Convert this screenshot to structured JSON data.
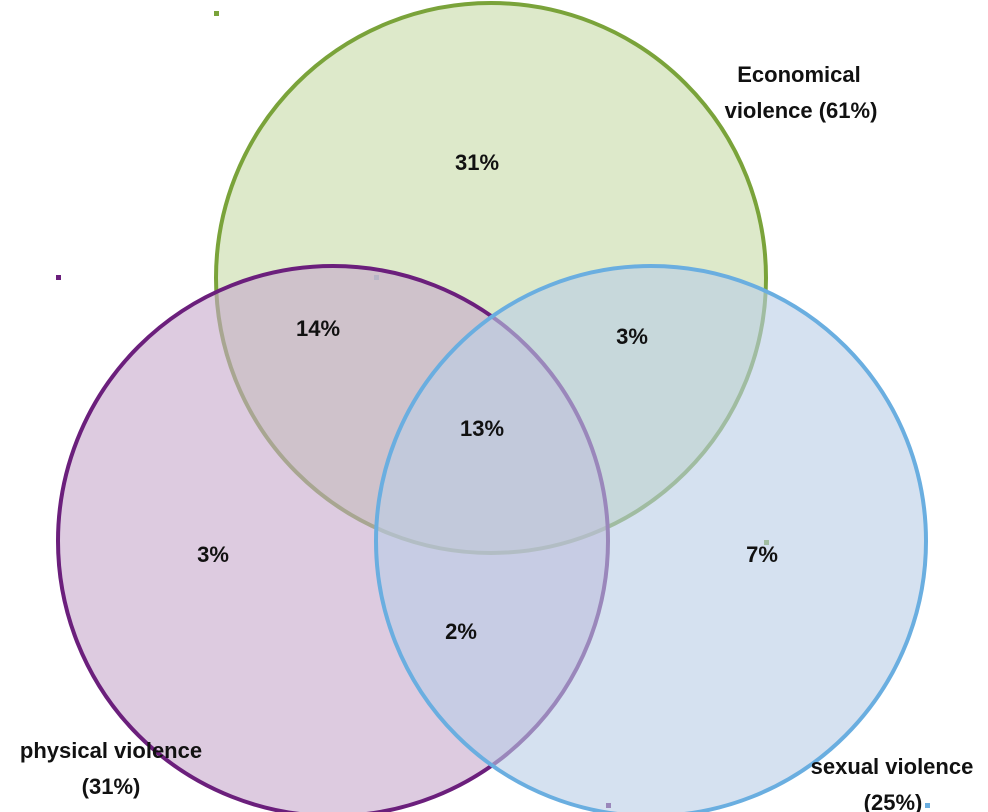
{
  "colors": {
    "economical_stroke": "#7aa33a",
    "economical_fill": "#c6dba6",
    "physical_stroke": "#6b1f7c",
    "physical_fill": "#c7a8cc",
    "sexual_stroke": "#6aaee0",
    "sexual_fill": "#b9cde6"
  },
  "sets": {
    "economical": {
      "label_line1": "Economical",
      "label_line2": "violence (61%)"
    },
    "physical": {
      "label_line1": "physical violence",
      "label_line2": "(31%)"
    },
    "sexual": {
      "label_line1": "sexual violence",
      "label_line2": "(25%)"
    }
  },
  "regions": {
    "economical_only": "31%",
    "physical_only": "3%",
    "sexual_only": "7%",
    "economical_physical": "14%",
    "economical_sexual": "3%",
    "physical_sexual": "2%",
    "all_three": "13%"
  }
}
